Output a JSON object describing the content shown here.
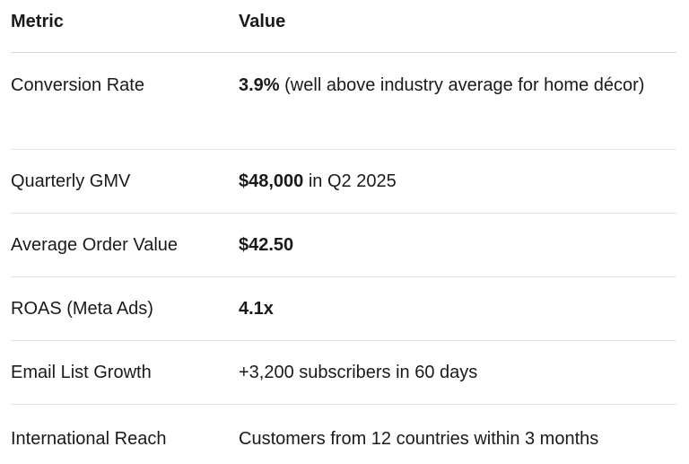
{
  "table": {
    "headers": {
      "metric": "Metric",
      "value": "Value"
    },
    "rows": [
      {
        "metric": "Conversion Rate",
        "value_bold": "3.9%",
        "value_rest": " (well above industry average for home décor)"
      },
      {
        "metric": "Quarterly GMV",
        "value_bold": "$48,000",
        "value_rest": " in Q2 2025"
      },
      {
        "metric": "Average Order Value",
        "value_bold": "$42.50",
        "value_rest": ""
      },
      {
        "metric": "ROAS (Meta Ads)",
        "value_bold": "4.1x",
        "value_rest": ""
      },
      {
        "metric": "Email List Growth",
        "value_bold": "",
        "value_rest": "+3,200 subscribers in 60 days"
      },
      {
        "metric": "International Reach",
        "value_bold": "",
        "value_rest": "Customers from 12 countries within 3 months"
      }
    ]
  }
}
